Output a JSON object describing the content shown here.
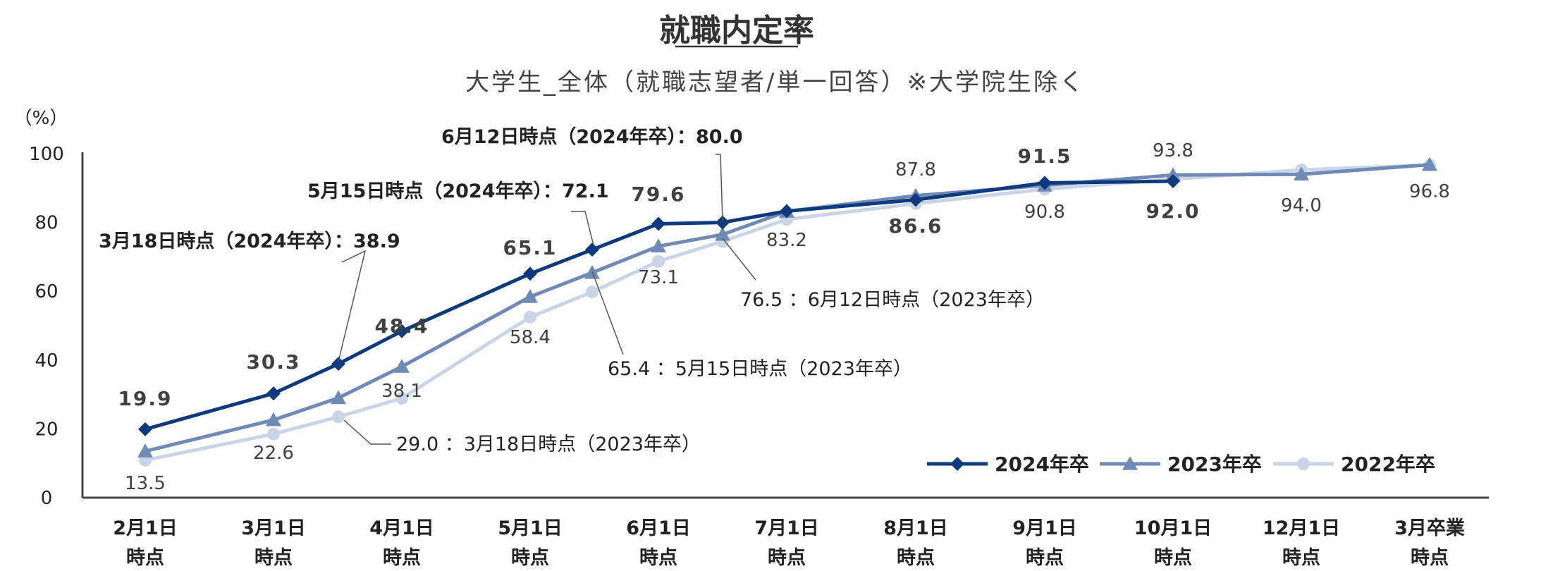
{
  "chart_data": {
    "type": "line",
    "title": "就職内定率",
    "subtitle": "大学生_全体（就職志望者/単一回答）※大学院生除く",
    "y_unit": "（%）",
    "ylim": [
      0,
      100
    ],
    "yticks": [
      "0",
      "20",
      "40",
      "60",
      "80",
      "100"
    ],
    "categories": [
      [
        "2月1日",
        "時点"
      ],
      [
        "3月1日",
        "時点"
      ],
      [
        "3月18日",
        ""
      ],
      [
        "4月1日",
        "時点"
      ],
      [
        "5月1日",
        "時点"
      ],
      [
        "5月15日",
        ""
      ],
      [
        "6月1日",
        "時点"
      ],
      [
        "6月12日",
        ""
      ],
      [
        "7月1日",
        "時点"
      ],
      [
        "8月1日",
        "時点"
      ],
      [
        "9月1日",
        "時点"
      ],
      [
        "10月1日",
        "時点"
      ],
      [
        "12月1日",
        "時点"
      ],
      [
        "3月卒業",
        "時点"
      ]
    ],
    "shown_category_indexes": [
      0,
      1,
      3,
      4,
      6,
      8,
      9,
      10,
      11,
      12,
      13
    ],
    "series": [
      {
        "name": "2024年卒",
        "color": "#0d3a7c",
        "marker": "diamond",
        "values": [
          19.9,
          30.3,
          38.9,
          48.4,
          65.1,
          72.1,
          79.6,
          80.0,
          83.3,
          86.6,
          91.5,
          92.0,
          null,
          null
        ],
        "labels": [
          "19.9",
          "30.3",
          "",
          "48.4",
          "65.1",
          "",
          "79.6",
          "",
          "",
          "86.6",
          "91.5",
          "92.0",
          "",
          ""
        ]
      },
      {
        "name": "2023年卒",
        "color": "#6f8bb5",
        "marker": "triangle",
        "values": [
          13.5,
          22.6,
          29.0,
          38.1,
          58.4,
          65.4,
          73.1,
          76.5,
          83.2,
          87.8,
          90.8,
          93.8,
          94.0,
          96.8
        ],
        "labels": [
          "13.5",
          "22.6",
          "",
          "38.1",
          "58.4",
          "",
          "73.1",
          "",
          "83.2",
          "87.8",
          "90.8",
          "93.8",
          "94.0",
          "96.8"
        ]
      },
      {
        "name": "2022年卒",
        "color": "#c9d5e7",
        "marker": "circle",
        "values": [
          10.9,
          18.5,
          23.5,
          28.9,
          52.5,
          59.8,
          68.7,
          74.5,
          80.9,
          85.5,
          89.7,
          92.6,
          95.3,
          96.7
        ],
        "labels": []
      }
    ],
    "annotations": [
      {
        "text": "3月18日時点（2024年卒）：38.9"
      },
      {
        "text": "5月15日時点（2024年卒）：72.1"
      },
      {
        "text": "6月12日時点（2024年卒）：80.0"
      },
      {
        "text": "29.0 ：3月18日時点（2023年卒）"
      },
      {
        "text": "65.4 ：5月15日時点（2023年卒）"
      },
      {
        "text": "76.5 ：6月12日時点（2023年卒）"
      }
    ],
    "legend": {
      "position": "bottom-right"
    },
    "grid": false
  }
}
